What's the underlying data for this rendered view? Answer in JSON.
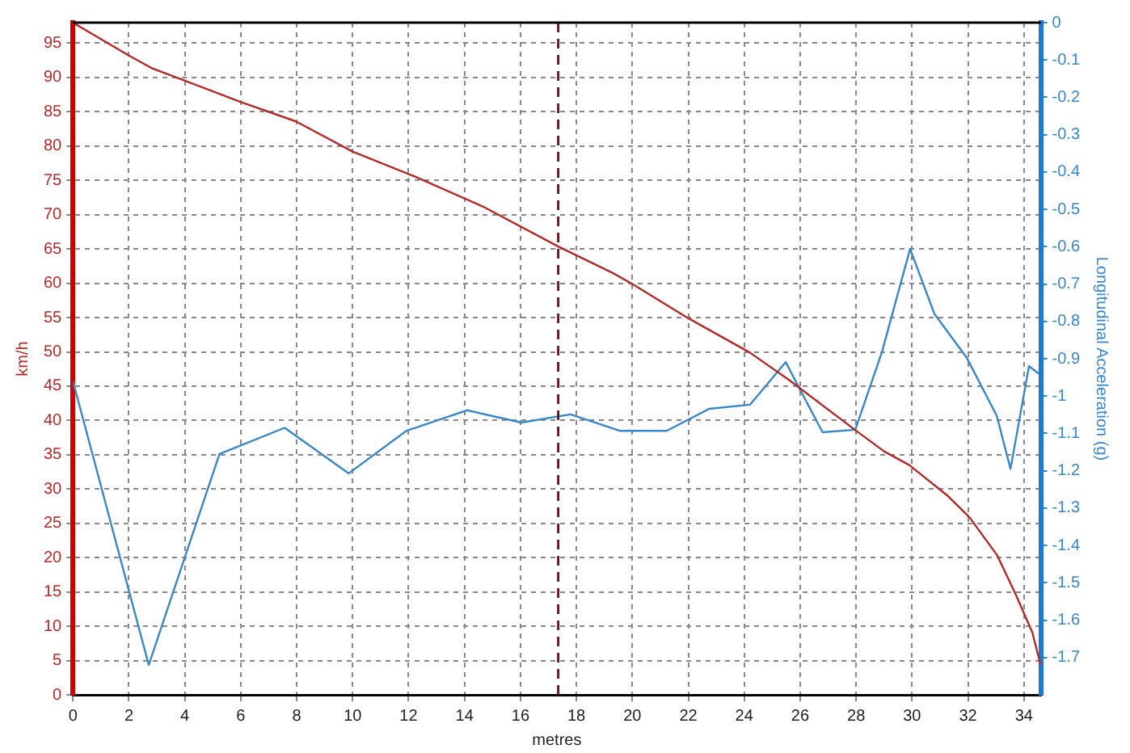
{
  "chart_data": {
    "type": "line",
    "xlabel": "metres",
    "ylabel": "km/h",
    "y2label": "Longitudinal Acceleration (g)",
    "xlim": [
      0,
      34.6
    ],
    "xticks": [
      0,
      2,
      4,
      6,
      8,
      10,
      12,
      14,
      16,
      18,
      20,
      22,
      24,
      26,
      28,
      30,
      32,
      34
    ],
    "ylim": [
      0,
      98
    ],
    "yticks": [
      0,
      5,
      10,
      15,
      20,
      25,
      30,
      35,
      40,
      45,
      50,
      55,
      60,
      65,
      70,
      75,
      80,
      85,
      90,
      95
    ],
    "y2lim": [
      -1.8,
      0
    ],
    "y2ticks": [
      -1.7,
      -1.6,
      -1.5,
      -1.4,
      -1.3,
      -1.2,
      -1.1,
      -1,
      -0.9,
      -0.8,
      -0.7,
      -0.6,
      -0.5,
      -0.4,
      -0.3,
      -0.2,
      -0.1,
      0
    ],
    "grid": true,
    "legend": false,
    "marker": "none",
    "line_style": "solid",
    "ref_lines": [
      {
        "axis": "x",
        "value": 17.35,
        "color": "#6e1a26",
        "line_style": "dashed"
      }
    ],
    "series": [
      {
        "color": "#b02a2a",
        "x": [
          0,
          2.0,
          2.8,
          5.95,
          7.97,
          10.0,
          12.2,
          14.65,
          17.38,
          19.3,
          20.0,
          22.0,
          24.2,
          25.6,
          28.0,
          29.0,
          29.9,
          31.25,
          32.05,
          33.05,
          33.7,
          34.3,
          34.6
        ],
        "values": [
          98,
          93.2,
          91.4,
          86.5,
          83.6,
          79.2,
          75.6,
          71.2,
          65.3,
          61.5,
          59.9,
          54.9,
          49.9,
          45.9,
          38.5,
          35.5,
          33.5,
          29.1,
          25.9,
          20.3,
          14.7,
          9.1,
          4.3
        ]
      },
      {
        "color": "#3a87c8",
        "axis": "y2",
        "x": [
          0,
          2.71,
          5.24,
          7.57,
          9.86,
          11.92,
          14.09,
          16.03,
          17.79,
          19.55,
          21.23,
          22.75,
          24.21,
          25.48,
          26.8,
          27.97,
          28.92,
          29.93,
          30.8,
          31.96,
          33.03,
          33.52,
          34.18,
          34.53
        ],
        "values": [
          -0.96,
          -1.72,
          -1.155,
          -1.085,
          -1.207,
          -1.093,
          -1.038,
          -1.071,
          -1.049,
          -1.093,
          -1.093,
          -1.034,
          -1.023,
          -0.909,
          -1.097,
          -1.09,
          -0.883,
          -0.606,
          -0.78,
          -0.898,
          -1.053,
          -1.195,
          -0.92,
          -0.94
        ]
      }
    ]
  }
}
